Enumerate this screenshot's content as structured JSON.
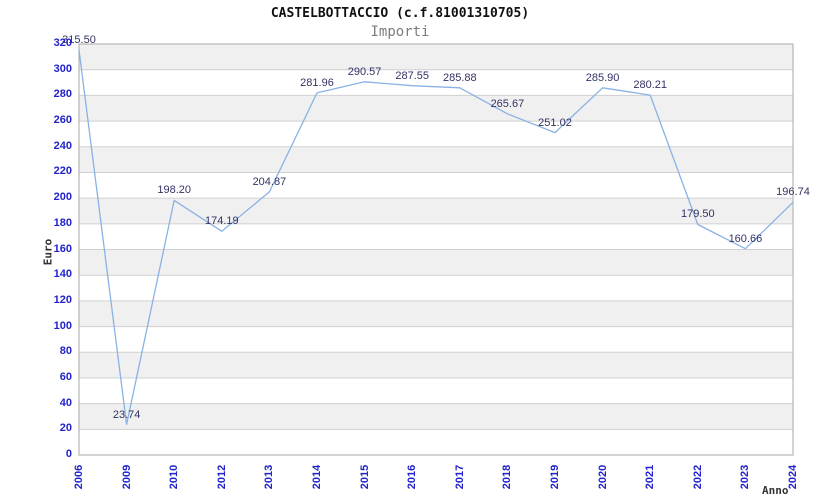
{
  "chart_data": {
    "type": "line",
    "title": "CASTELBOTTACCIO (c.f.81001310705)",
    "subtitle": "Importi",
    "xlabel": "Anno",
    "ylabel": "Euro",
    "categories": [
      "2006",
      "2009",
      "2010",
      "2012",
      "2013",
      "2014",
      "2015",
      "2016",
      "2017",
      "2018",
      "2019",
      "2020",
      "2021",
      "2022",
      "2023",
      "2024"
    ],
    "values": [
      315.5,
      23.74,
      198.2,
      174.19,
      204.87,
      281.96,
      290.57,
      287.55,
      285.88,
      265.67,
      251.02,
      285.9,
      280.21,
      179.5,
      160.66,
      196.74
    ],
    "point_labels": [
      "315.50",
      "23.74",
      "198.20",
      "174.19",
      "204.87",
      "281.96",
      "290.57",
      "287.55",
      "285.88",
      "265.67",
      "251.02",
      "285.90",
      "280.21",
      "179.50",
      "160.66",
      "196.74"
    ],
    "ylim": [
      0,
      320
    ],
    "y_tick_step": 20,
    "grid": true,
    "legend_position": "none",
    "alternating_bands": true
  },
  "colors": {
    "line": "#89b2e4",
    "tick_label": "#2222cc",
    "data_label": "#333366",
    "band_gray": "#f0f0f0",
    "band_white": "#ffffff",
    "gridline": "#d0d0d0",
    "plot_border": "#aaaaaa",
    "title": "#111111",
    "subtitle": "#7d7d7d",
    "axis_title": "#333333"
  }
}
